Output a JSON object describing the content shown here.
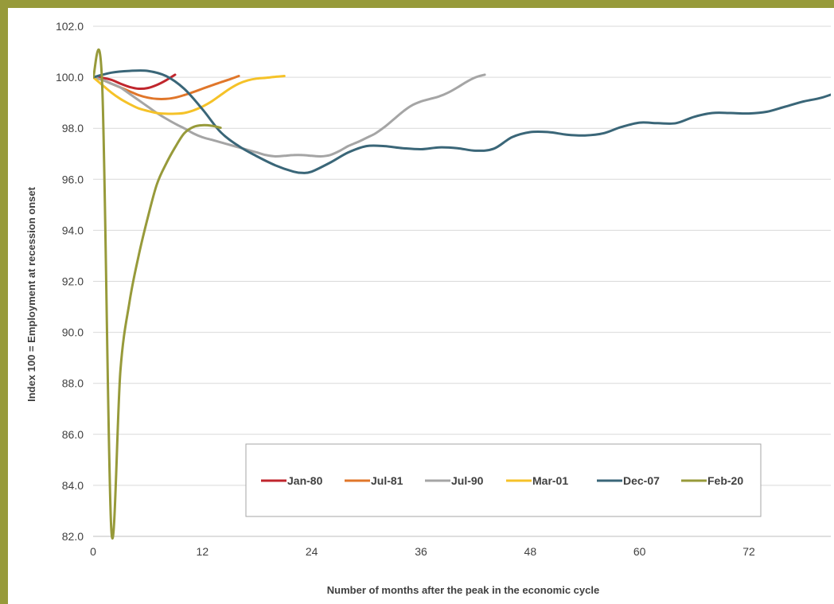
{
  "chart_data": {
    "type": "line",
    "title": "",
    "xlabel": "Number of months after the peak in the economic cycle",
    "ylabel": "Index 100 = Employment at recession onset",
    "xlim": [
      0,
      81
    ],
    "ylim": [
      82,
      102
    ],
    "x_ticks": [
      0,
      12,
      24,
      36,
      48,
      60,
      72
    ],
    "x_tick_labels": [
      "0",
      "12",
      "24",
      "36",
      "48",
      "60",
      "72"
    ],
    "y_ticks": [
      82,
      84,
      86,
      88,
      90,
      92,
      94,
      96,
      98,
      100,
      102
    ],
    "y_tick_labels": [
      "82.0",
      "84.0",
      "86.0",
      "88.0",
      "90.0",
      "92.0",
      "94.0",
      "96.0",
      "98.0",
      "100.0",
      "102.0"
    ],
    "grid": "horizontal",
    "legend_position": "bottom-center",
    "series": [
      {
        "name": "Jan-80",
        "color": "#c0262d",
        "x": [
          0,
          1,
          2,
          3,
          4,
          5,
          6,
          7,
          8,
          9
        ],
        "y": [
          100,
          99.98,
          99.9,
          99.75,
          99.62,
          99.55,
          99.58,
          99.7,
          99.88,
          100.1
        ]
      },
      {
        "name": "Jul-81",
        "color": "#e0762a",
        "x": [
          0,
          1,
          2,
          3,
          4,
          5,
          6,
          7,
          8,
          9,
          10,
          11,
          12,
          13,
          14,
          15,
          16
        ],
        "y": [
          100,
          99.9,
          99.75,
          99.6,
          99.45,
          99.3,
          99.2,
          99.15,
          99.15,
          99.2,
          99.3,
          99.42,
          99.55,
          99.68,
          99.8,
          99.92,
          100.05
        ]
      },
      {
        "name": "Jul-90",
        "color": "#a5a5a5",
        "x": [
          0,
          1,
          2,
          3,
          4,
          5,
          6,
          7,
          8,
          9,
          10,
          11,
          12,
          13,
          14,
          15,
          16,
          17,
          18,
          19,
          20,
          21,
          22,
          23,
          24,
          25,
          26,
          27,
          28,
          29,
          30,
          31,
          32,
          33,
          34,
          35,
          36,
          37,
          38,
          39,
          40,
          41,
          42,
          43
        ],
        "y": [
          100,
          99.9,
          99.75,
          99.6,
          99.35,
          99.1,
          98.85,
          98.6,
          98.38,
          98.18,
          98,
          97.8,
          97.65,
          97.55,
          97.45,
          97.35,
          97.25,
          97.15,
          97.05,
          96.95,
          96.9,
          96.92,
          96.95,
          96.95,
          96.92,
          96.9,
          96.95,
          97.1,
          97.3,
          97.45,
          97.62,
          97.8,
          98.05,
          98.35,
          98.65,
          98.9,
          99.05,
          99.15,
          99.25,
          99.4,
          99.6,
          99.82,
          100,
          100.1
        ]
      },
      {
        "name": "Mar-01",
        "color": "#f5c228",
        "x": [
          0,
          1,
          2,
          3,
          4,
          5,
          6,
          7,
          8,
          9,
          10,
          11,
          12,
          13,
          14,
          15,
          16,
          17,
          18,
          19,
          20,
          21
        ],
        "y": [
          100,
          99.7,
          99.4,
          99.15,
          98.95,
          98.78,
          98.68,
          98.6,
          98.57,
          98.57,
          98.6,
          98.7,
          98.85,
          99.05,
          99.3,
          99.55,
          99.75,
          99.88,
          99.95,
          99.98,
          100.02,
          100.05
        ]
      },
      {
        "name": "Dec-07",
        "color": "#3a6678",
        "x": [
          0,
          2,
          4,
          6,
          8,
          10,
          12,
          14,
          16,
          18,
          20,
          22,
          23,
          24,
          26,
          28,
          30,
          32,
          34,
          36,
          38,
          40,
          42,
          44,
          46,
          48,
          50,
          52,
          54,
          56,
          58,
          60,
          62,
          64,
          66,
          68,
          70,
          72,
          74,
          76,
          78,
          80,
          82
        ],
        "y": [
          100,
          100.18,
          100.25,
          100.25,
          100.05,
          99.55,
          98.75,
          97.85,
          97.3,
          96.9,
          96.55,
          96.3,
          96.25,
          96.3,
          96.65,
          97.05,
          97.3,
          97.3,
          97.22,
          97.18,
          97.25,
          97.22,
          97.12,
          97.2,
          97.65,
          97.85,
          97.85,
          97.75,
          97.72,
          97.8,
          98.05,
          98.22,
          98.2,
          98.2,
          98.45,
          98.6,
          98.6,
          98.58,
          98.65,
          98.85,
          99.05,
          99.2,
          99.45
        ]
      },
      {
        "name": "Feb-20",
        "color": "#979a3a",
        "x": [
          0,
          1,
          2,
          3,
          4,
          5,
          6,
          7,
          8,
          9,
          10,
          11,
          12,
          13,
          14
        ],
        "y": [
          100,
          99.7,
          82.25,
          88.5,
          91.2,
          93,
          94.5,
          95.8,
          96.6,
          97.25,
          97.8,
          98.05,
          98.12,
          98.1,
          98.02
        ]
      }
    ]
  }
}
